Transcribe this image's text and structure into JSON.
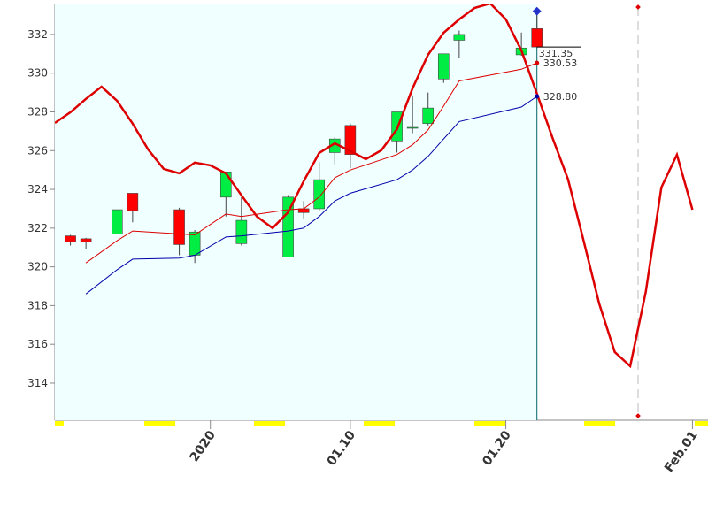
{
  "chart_data": {
    "type": "candlestick",
    "x": [
      "2019-12-23",
      "2019-12-24",
      "2019-12-26",
      "2019-12-27",
      "2019-12-30",
      "2019-12-31",
      "2020-01-02",
      "2020-01-03",
      "2020-01-06",
      "2020-01-07",
      "2020-01-08",
      "2020-01-09",
      "2020-01-10",
      "2020-01-13",
      "2020-01-14",
      "2020-01-15",
      "2020-01-16",
      "2020-01-17",
      "2020-01-21",
      "2020-01-22"
    ],
    "open": [
      321.6,
      321.45,
      321.7,
      323.8,
      322.95,
      320.6,
      323.6,
      321.2,
      320.5,
      323.0,
      323.0,
      325.9,
      327.3,
      326.5,
      327.2,
      327.4,
      329.7,
      331.7,
      330.95,
      332.3
    ],
    "high": [
      321.65,
      321.5,
      322.95,
      323.8,
      323.05,
      321.9,
      324.9,
      323.6,
      323.7,
      323.4,
      325.4,
      326.7,
      327.4,
      328.0,
      328.8,
      329.0,
      331.0,
      332.2,
      332.1,
      333.2
    ],
    "low": [
      321.1,
      320.9,
      321.7,
      322.3,
      320.6,
      320.2,
      322.6,
      321.1,
      320.5,
      322.5,
      322.9,
      325.3,
      325.1,
      325.9,
      326.9,
      327.3,
      329.5,
      330.8,
      330.9,
      331.3
    ],
    "close": [
      321.3,
      321.3,
      322.95,
      322.9,
      321.15,
      321.8,
      324.9,
      322.4,
      323.6,
      322.8,
      324.5,
      326.6,
      325.8,
      328.0,
      327.2,
      328.2,
      331.0,
      332.0,
      331.3,
      331.35
    ],
    "up_color": "#00ee44",
    "down_color": "#ff0000",
    "lines": [
      {
        "color": "#dd0000",
        "width": 2.5,
        "x": [
          "2019-12-22",
          "2019-12-23",
          "2019-12-24",
          "2019-12-25",
          "2019-12-26",
          "2019-12-27",
          "2019-12-28",
          "2019-12-29",
          "2019-12-30",
          "2019-12-31",
          "2020-01-01",
          "2020-01-02",
          "2020-01-03",
          "2020-01-04",
          "2020-01-05",
          "2020-01-06",
          "2020-01-07",
          "2020-01-08",
          "2020-01-09",
          "2020-01-10",
          "2020-01-11",
          "2020-01-12",
          "2020-01-13",
          "2020-01-14",
          "2020-01-15",
          "2020-01-16",
          "2020-01-17",
          "2020-01-18",
          "2020-01-19",
          "2020-01-20",
          "2020-01-21",
          "2020-01-22",
          "2020-01-23",
          "2020-01-24",
          "2020-01-25",
          "2020-01-26",
          "2020-01-27",
          "2020-01-28",
          "2020-01-29",
          "2020-01-30",
          "2020-01-31",
          "2020-02-01"
        ],
        "values": [
          327.43,
          327.98,
          328.67,
          329.3,
          328.57,
          327.39,
          326.06,
          325.06,
          324.83,
          325.38,
          325.24,
          324.83,
          323.69,
          322.59,
          322.0,
          322.82,
          324.42,
          325.88,
          326.38,
          325.97,
          325.56,
          326.02,
          327.11,
          329.21,
          330.95,
          332.09,
          332.78,
          333.37,
          333.6,
          332.78,
          331.18,
          328.94,
          326.66,
          324.51,
          321.36,
          318.11,
          315.6,
          314.87,
          318.71,
          324.1,
          325.79,
          322.95
        ]
      },
      {
        "color": "#dd0000",
        "width": 1,
        "values": [
          null,
          320.2,
          321.35,
          321.85,
          321.7,
          321.65,
          322.73,
          322.6,
          322.95,
          323.0,
          323.6,
          324.6,
          325.0,
          325.8,
          326.3,
          327.07,
          328.3,
          329.6,
          330.2,
          330.53
        ]
      },
      {
        "color": "#0000aa",
        "width": 1,
        "values": [
          null,
          318.6,
          319.85,
          320.4,
          320.45,
          320.6,
          321.54,
          321.6,
          321.85,
          322.0,
          322.6,
          323.4,
          323.8,
          324.5,
          325.0,
          325.7,
          326.6,
          327.5,
          328.25,
          328.8
        ]
      }
    ],
    "annotations": [
      {
        "label": "331.35",
        "value": 331.35,
        "color": "#000000"
      },
      {
        "label": "330.53",
        "value": 330.53,
        "color": "#dd0000"
      },
      {
        "label": "328.80",
        "value": 328.8,
        "color": "#0000aa"
      }
    ],
    "xlim": [
      "2019-12-22",
      "2020-02-02"
    ],
    "xticks": [
      {
        "value": "2020-01-01",
        "label": "2020",
        "color": "#8b0000"
      },
      {
        "value": "2020-01-10",
        "label": "01.10",
        "color": "#777777"
      },
      {
        "value": "2020-01-20",
        "label": "01.20",
        "color": "#777777"
      },
      {
        "value": "2020-02-01",
        "label": "Feb.01",
        "color": "#8b0000"
      }
    ],
    "ylim": [
      312.08,
      333.55
    ],
    "yticks": [
      314,
      316,
      318,
      320,
      322,
      324,
      326,
      328,
      330,
      332
    ]
  }
}
